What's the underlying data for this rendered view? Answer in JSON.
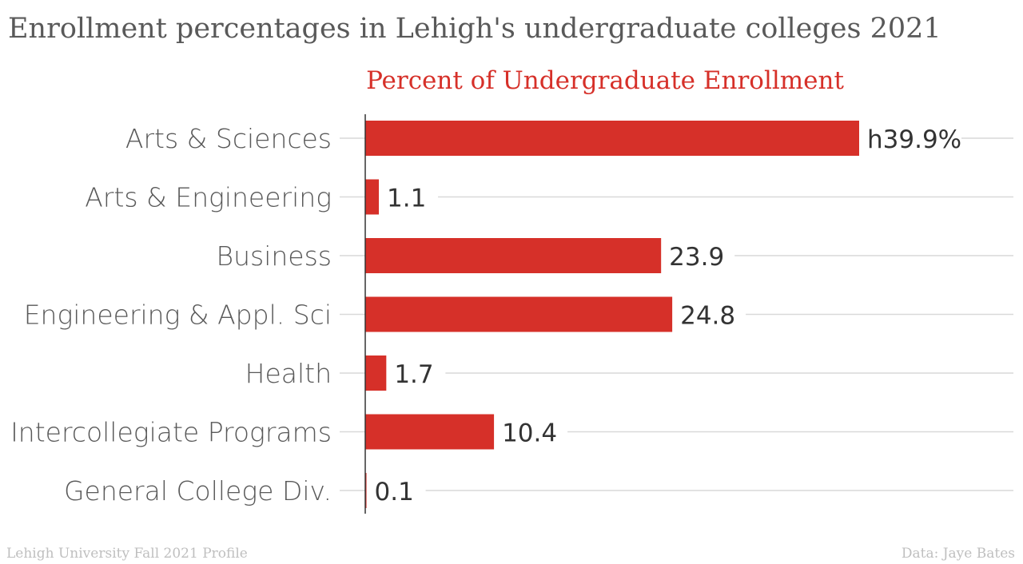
{
  "chart_data": {
    "type": "bar",
    "orientation": "horizontal",
    "title": "Enrollment percentages in Lehigh's undergraduate colleges 2021",
    "series": [
      {
        "name": "Percent of Undergraduate Enrollment",
        "color": "#d63029",
        "values": [
          39.9,
          1.1,
          23.9,
          24.8,
          1.7,
          10.4,
          0.1
        ],
        "value_labels": [
          "h39.9%",
          "1.1",
          "23.9",
          "24.8",
          "1.7",
          "10.4",
          "0.1"
        ]
      }
    ],
    "categories": [
      "Arts & Sciences",
      "Arts & Engineering",
      "Business",
      "Engineering & Appl. Sci",
      "Health",
      "Intercollegiate Programs",
      "General College Div."
    ],
    "xlim": [
      0,
      39.9
    ],
    "grid": true,
    "legend": "top"
  },
  "footer": {
    "source_left": "Lehigh University Fall 2021 Profile",
    "source_right": "Data: Jaye Bates"
  }
}
